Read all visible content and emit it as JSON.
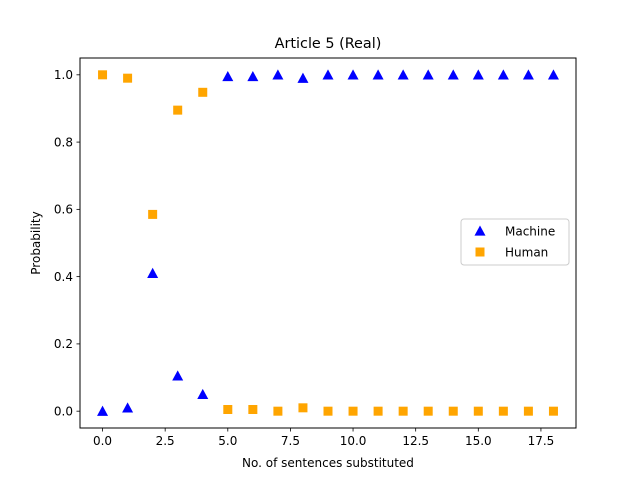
{
  "chart_data": {
    "type": "scatter",
    "title": "Article 5 (Real)",
    "xlabel": "No. of sentences substituted",
    "ylabel": "Probability",
    "xlim": [
      -0.9,
      18.9
    ],
    "ylim": [
      -0.05,
      1.05
    ],
    "xticks": [
      0,
      2.5,
      5,
      7.5,
      10,
      12.5,
      15,
      17.5
    ],
    "xtick_labels": [
      "0.0",
      "2.5",
      "5.0",
      "7.5",
      "10.0",
      "12.5",
      "15.0",
      "17.5"
    ],
    "yticks": [
      0,
      0.2,
      0.4,
      0.6,
      0.8,
      1.0
    ],
    "ytick_labels": [
      "0.0",
      "0.2",
      "0.4",
      "0.6",
      "0.8",
      "1.0"
    ],
    "grid": false,
    "legend_position": "center-right",
    "x": [
      0,
      1,
      2,
      3,
      4,
      5,
      6,
      7,
      8,
      9,
      10,
      11,
      12,
      13,
      14,
      15,
      16,
      17,
      18
    ],
    "series": [
      {
        "name": "Machine",
        "marker": "triangle",
        "color": "#0000ff",
        "values": [
          0.0,
          0.01,
          0.41,
          0.105,
          0.05,
          0.995,
          0.995,
          1.0,
          0.99,
          1.0,
          1.0,
          1.0,
          1.0,
          1.0,
          1.0,
          1.0,
          1.0,
          1.0,
          1.0
        ]
      },
      {
        "name": "Human",
        "marker": "square",
        "color": "#ffa500",
        "values": [
          1.0,
          0.99,
          0.585,
          0.895,
          0.948,
          0.005,
          0.005,
          0.0,
          0.01,
          0.0,
          0.0,
          0.0,
          0.0,
          0.0,
          0.0,
          0.0,
          0.0,
          0.0,
          0.0
        ]
      }
    ]
  }
}
